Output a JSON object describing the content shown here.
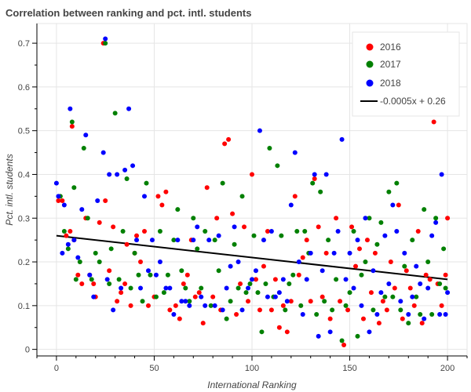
{
  "chart_data": {
    "type": "scatter",
    "title": "Correlation between ranking and pct. intl. students",
    "xlabel": "International Ranking",
    "ylabel": "Pct. intl. students",
    "xlim": [
      -10,
      210
    ],
    "ylim": [
      -0.015,
      0.745
    ],
    "xticks": [
      0,
      50,
      100,
      150,
      200
    ],
    "yticks": [
      0,
      0.1,
      0.2,
      0.3,
      0.4,
      0.5,
      0.6,
      0.7
    ],
    "grid": true,
    "legend_position": "top-right",
    "series": [
      {
        "name": "2016",
        "color": "#ff0000",
        "points": [
          [
            1,
            0.34
          ],
          [
            3,
            0.34
          ],
          [
            5,
            0.26
          ],
          [
            7,
            0.27
          ],
          [
            8,
            0.51
          ],
          [
            9,
            0.25
          ],
          [
            11,
            0.17
          ],
          [
            13,
            0.15
          ],
          [
            15,
            0.3
          ],
          [
            17,
            0.17
          ],
          [
            19,
            0.15
          ],
          [
            20,
            0.12
          ],
          [
            22,
            0.29
          ],
          [
            24,
            0.7
          ],
          [
            25,
            0.34
          ],
          [
            27,
            0.18
          ],
          [
            29,
            0.28
          ],
          [
            31,
            0.11
          ],
          [
            33,
            0.13
          ],
          [
            35,
            0.15
          ],
          [
            36,
            0.24
          ],
          [
            38,
            0.1
          ],
          [
            40,
            0.22
          ],
          [
            41,
            0.26
          ],
          [
            43,
            0.2
          ],
          [
            45,
            0.27
          ],
          [
            47,
            0.1
          ],
          [
            50,
            0.12
          ],
          [
            52,
            0.35
          ],
          [
            54,
            0.33
          ],
          [
            56,
            0.36
          ],
          [
            58,
            0.09
          ],
          [
            61,
            0.1
          ],
          [
            63,
            0.07
          ],
          [
            65,
            0.15
          ],
          [
            67,
            0.17
          ],
          [
            69,
            0.25
          ],
          [
            71,
            0.12
          ],
          [
            73,
            0.13
          ],
          [
            75,
            0.06
          ],
          [
            77,
            0.37
          ],
          [
            80,
            0.12
          ],
          [
            82,
            0.3
          ],
          [
            84,
            0.09
          ],
          [
            86,
            0.47
          ],
          [
            88,
            0.48
          ],
          [
            90,
            0.31
          ],
          [
            92,
            0.08
          ],
          [
            94,
            0.15
          ],
          [
            96,
            0.28
          ],
          [
            98,
            0.11
          ],
          [
            100,
            0.4
          ],
          [
            102,
            0.16
          ],
          [
            104,
            0.09
          ],
          [
            106,
            0.19
          ],
          [
            108,
            0.27
          ],
          [
            110,
            0.09
          ],
          [
            112,
            0.16
          ],
          [
            114,
            0.05
          ],
          [
            116,
            0.1
          ],
          [
            118,
            0.04
          ],
          [
            120,
            0.11
          ],
          [
            122,
            0.35
          ],
          [
            124,
            0.17
          ],
          [
            126,
            0.21
          ],
          [
            128,
            0.25
          ],
          [
            130,
            0.11
          ],
          [
            132,
            0.39
          ],
          [
            134,
            0.28
          ],
          [
            136,
            0.12
          ],
          [
            138,
            0.22
          ],
          [
            140,
            0.07
          ],
          [
            143,
            0.3
          ],
          [
            145,
            0.11
          ],
          [
            147,
            0.01
          ],
          [
            149,
            0.09
          ],
          [
            151,
            0.28
          ],
          [
            153,
            0.19
          ],
          [
            155,
            0.23
          ],
          [
            157,
            0.07
          ],
          [
            159,
            0.25
          ],
          [
            161,
            0.13
          ],
          [
            163,
            0.22
          ],
          [
            165,
            0.06
          ],
          [
            167,
            0.11
          ],
          [
            169,
            0.09
          ],
          [
            171,
            0.2
          ],
          [
            173,
            0.14
          ],
          [
            175,
            0.33
          ],
          [
            177,
            0.07
          ],
          [
            179,
            0.18
          ],
          [
            181,
            0.14
          ],
          [
            183,
            0.1
          ],
          [
            185,
            0.27
          ],
          [
            187,
            0.06
          ],
          [
            189,
            0.17
          ],
          [
            191,
            0.16
          ],
          [
            193,
            0.52
          ],
          [
            195,
            0.15
          ],
          [
            197,
            0.1
          ],
          [
            199,
            0.17
          ],
          [
            200,
            0.3
          ]
        ]
      },
      {
        "name": "2017",
        "color": "#008000",
        "points": [
          [
            2,
            0.35
          ],
          [
            4,
            0.27
          ],
          [
            6,
            0.23
          ],
          [
            8,
            0.52
          ],
          [
            9,
            0.37
          ],
          [
            10,
            0.16
          ],
          [
            12,
            0.2
          ],
          [
            14,
            0.46
          ],
          [
            16,
            0.3
          ],
          [
            18,
            0.16
          ],
          [
            20,
            0.22
          ],
          [
            22,
            0.2
          ],
          [
            25,
            0.7
          ],
          [
            27,
            0.15
          ],
          [
            28,
            0.23
          ],
          [
            30,
            0.54
          ],
          [
            32,
            0.16
          ],
          [
            34,
            0.27
          ],
          [
            36,
            0.39
          ],
          [
            38,
            0.14
          ],
          [
            40,
            0.22
          ],
          [
            42,
            0.17
          ],
          [
            44,
            0.11
          ],
          [
            46,
            0.38
          ],
          [
            48,
            0.17
          ],
          [
            51,
            0.12
          ],
          [
            53,
            0.27
          ],
          [
            55,
            0.13
          ],
          [
            57,
            0.17
          ],
          [
            60,
            0.25
          ],
          [
            62,
            0.32
          ],
          [
            64,
            0.18
          ],
          [
            66,
            0.14
          ],
          [
            68,
            0.11
          ],
          [
            70,
            0.3
          ],
          [
            72,
            0.23
          ],
          [
            74,
            0.14
          ],
          [
            76,
            0.27
          ],
          [
            79,
            0.1
          ],
          [
            81,
            0.25
          ],
          [
            83,
            0.18
          ],
          [
            85,
            0.38
          ],
          [
            87,
            0.07
          ],
          [
            89,
            0.11
          ],
          [
            91,
            0.24
          ],
          [
            93,
            0.14
          ],
          [
            95,
            0.35
          ],
          [
            97,
            0.13
          ],
          [
            99,
            0.15
          ],
          [
            101,
            0.26
          ],
          [
            103,
            0.13
          ],
          [
            105,
            0.04
          ],
          [
            107,
            0.15
          ],
          [
            109,
            0.46
          ],
          [
            111,
            0.12
          ],
          [
            113,
            0.42
          ],
          [
            115,
            0.26
          ],
          [
            117,
            0.09
          ],
          [
            119,
            0.15
          ],
          [
            121,
            0.17
          ],
          [
            123,
            0.27
          ],
          [
            125,
            0.1
          ],
          [
            127,
            0.27
          ],
          [
            129,
            0.22
          ],
          [
            131,
            0.38
          ],
          [
            133,
            0.08
          ],
          [
            135,
            0.36
          ],
          [
            137,
            0.11
          ],
          [
            139,
            0.25
          ],
          [
            141,
            0.09
          ],
          [
            143,
            0.16
          ],
          [
            146,
            0.02
          ],
          [
            148,
            0.1
          ],
          [
            150,
            0.13
          ],
          [
            152,
            0.27
          ],
          [
            154,
            0.03
          ],
          [
            156,
            0.17
          ],
          [
            158,
            0.2
          ],
          [
            160,
            0.3
          ],
          [
            162,
            0.09
          ],
          [
            164,
            0.24
          ],
          [
            166,
            0.29
          ],
          [
            168,
            0.12
          ],
          [
            170,
            0.36
          ],
          [
            172,
            0.12
          ],
          [
            174,
            0.38
          ],
          [
            176,
            0.09
          ],
          [
            178,
            0.19
          ],
          [
            180,
            0.06
          ],
          [
            182,
            0.25
          ],
          [
            184,
            0.12
          ],
          [
            186,
            0.08
          ],
          [
            188,
            0.32
          ],
          [
            190,
            0.2
          ],
          [
            192,
            0.08
          ],
          [
            194,
            0.3
          ],
          [
            196,
            0.15
          ],
          [
            198,
            0.23
          ],
          [
            199,
            0.14
          ]
        ]
      },
      {
        "name": "2018",
        "color": "#0000ff",
        "points": [
          [
            0,
            0.38
          ],
          [
            1,
            0.35
          ],
          [
            3,
            0.22
          ],
          [
            4,
            0.33
          ],
          [
            6,
            0.24
          ],
          [
            7,
            0.55
          ],
          [
            9,
            0.25
          ],
          [
            11,
            0.21
          ],
          [
            13,
            0.32
          ],
          [
            15,
            0.49
          ],
          [
            17,
            0.17
          ],
          [
            19,
            0.12
          ],
          [
            21,
            0.34
          ],
          [
            24,
            0.45
          ],
          [
            25,
            0.71
          ],
          [
            26,
            0.16
          ],
          [
            27,
            0.4
          ],
          [
            29,
            0.09
          ],
          [
            31,
            0.4
          ],
          [
            33,
            0.14
          ],
          [
            35,
            0.41
          ],
          [
            37,
            0.55
          ],
          [
            39,
            0.42
          ],
          [
            41,
            0.25
          ],
          [
            43,
            0.14
          ],
          [
            45,
            0.35
          ],
          [
            47,
            0.18
          ],
          [
            49,
            0.25
          ],
          [
            51,
            0.17
          ],
          [
            53,
            0.2
          ],
          [
            56,
            0.14
          ],
          [
            58,
            0.14
          ],
          [
            60,
            0.08
          ],
          [
            62,
            0.25
          ],
          [
            64,
            0.11
          ],
          [
            66,
            0.11
          ],
          [
            68,
            0.1
          ],
          [
            70,
            0.25
          ],
          [
            72,
            0.28
          ],
          [
            74,
            0.12
          ],
          [
            76,
            0.1
          ],
          [
            78,
            0.25
          ],
          [
            81,
            0.1
          ],
          [
            83,
            0.26
          ],
          [
            85,
            0.09
          ],
          [
            87,
            0.14
          ],
          [
            89,
            0.19
          ],
          [
            91,
            0.28
          ],
          [
            93,
            0.2
          ],
          [
            95,
            0.09
          ],
          [
            98,
            0.14
          ],
          [
            100,
            0.16
          ],
          [
            102,
            0.18
          ],
          [
            104,
            0.5
          ],
          [
            106,
            0.25
          ],
          [
            108,
            0.12
          ],
          [
            110,
            0.27
          ],
          [
            112,
            0.12
          ],
          [
            114,
            0.13
          ],
          [
            116,
            0.16
          ],
          [
            118,
            0.11
          ],
          [
            120,
            0.33
          ],
          [
            122,
            0.45
          ],
          [
            124,
            0.2
          ],
          [
            126,
            0.08
          ],
          [
            128,
            0.16
          ],
          [
            130,
            0.22
          ],
          [
            132,
            0.4
          ],
          [
            134,
            0.03
          ],
          [
            136,
            0.18
          ],
          [
            138,
            0.4
          ],
          [
            140,
            0.04
          ],
          [
            142,
            0.22
          ],
          [
            144,
            0.27
          ],
          [
            146,
            0.48
          ],
          [
            148,
            0.16
          ],
          [
            150,
            0.22
          ],
          [
            152,
            0.14
          ],
          [
            154,
            0.25
          ],
          [
            156,
            0.1
          ],
          [
            158,
            0.3
          ],
          [
            160,
            0.04
          ],
          [
            162,
            0.18
          ],
          [
            164,
            0.08
          ],
          [
            166,
            0.13
          ],
          [
            168,
            0.26
          ],
          [
            170,
            0.15
          ],
          [
            172,
            0.33
          ],
          [
            174,
            0.27
          ],
          [
            176,
            0.11
          ],
          [
            178,
            0.22
          ],
          [
            180,
            0.08
          ],
          [
            182,
            0.12
          ],
          [
            184,
            0.19
          ],
          [
            186,
            0.15
          ],
          [
            188,
            0.07
          ],
          [
            190,
            0.14
          ],
          [
            192,
            0.26
          ],
          [
            194,
            0.29
          ],
          [
            196,
            0.08
          ],
          [
            197,
            0.4
          ],
          [
            199,
            0.08
          ],
          [
            200,
            0.13
          ]
        ]
      }
    ],
    "trendline": {
      "name": "-0.0005x + 0.26",
      "color": "#000000",
      "slope": -0.0005,
      "intercept": 0.26,
      "x_range": [
        0,
        200
      ]
    }
  }
}
